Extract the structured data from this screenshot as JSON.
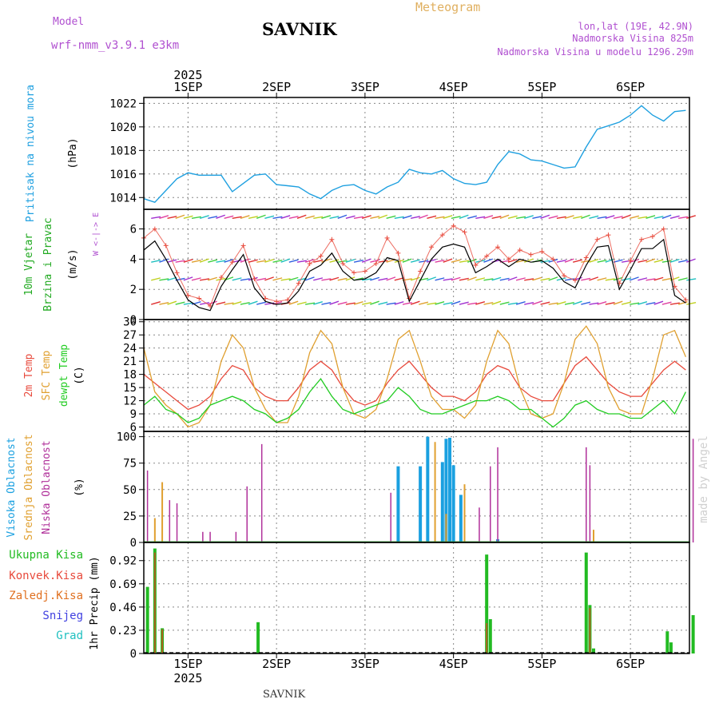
{
  "header": {
    "model_label": "Model",
    "model_name": "wrf-nmm_v3.9.1 e3km",
    "station": "SAVNIK",
    "product": "Meteogram",
    "lonlat": "lon,lat (19E, 42.9N)",
    "elevation": "Nadmorska Visina 825m",
    "model_elevation": "Nadmorska Visina u modelu 1296.29m"
  },
  "footer": {
    "station": "SAVNIK",
    "watermark": "made by Angel"
  },
  "colors": {
    "pressure": "#1fa0e0",
    "wind_label": "#22aa22",
    "t2m": "#e84a3c",
    "tsfc": "#e0a030",
    "dewpt": "#22cc22",
    "cloud_high": "#1aa0e0",
    "cloud_mid": "#e0a030",
    "cloud_low": "#b0309a",
    "precip_total": "#22bb22",
    "precip_conv": "#e84a3c",
    "precip_strat": "#e07020",
    "snow": "#4040e0",
    "hail": "#20c0c0",
    "violet": "#b050d0",
    "grid": "#888888"
  },
  "chart_data": [
    {
      "id": "pressure",
      "type": "line",
      "ylabel": [
        "Pritisak na nivou mora",
        "(hPa)"
      ],
      "ylim": [
        1013,
        1022.5
      ],
      "yticks": [
        1014,
        1016,
        1018,
        1020,
        1022
      ],
      "x_hours": [
        0,
        3,
        6,
        9,
        12,
        15,
        18,
        21,
        24,
        27,
        30,
        33,
        36,
        39,
        42,
        45,
        48,
        51,
        54,
        57,
        60,
        63,
        66,
        69,
        72,
        75,
        78,
        81,
        84,
        87,
        90,
        93,
        96,
        99,
        102,
        105,
        108,
        111,
        114,
        117,
        120,
        123,
        126,
        129,
        132,
        135,
        138,
        141,
        144,
        147
      ],
      "values": [
        1013.9,
        1013.6,
        1014.6,
        1015.6,
        1016.1,
        1015.9,
        1015.9,
        1015.9,
        1014.5,
        1015.2,
        1015.9,
        1016.0,
        1015.1,
        1015.0,
        1014.9,
        1014.3,
        1013.9,
        1014.6,
        1015.0,
        1015.1,
        1014.6,
        1014.3,
        1014.9,
        1015.3,
        1016.4,
        1016.1,
        1016.0,
        1016.3,
        1015.6,
        1015.2,
        1015.1,
        1015.3,
        1016.8,
        1017.9,
        1017.7,
        1017.2,
        1017.1,
        1016.8,
        1016.5,
        1016.6,
        1018.3,
        1019.8,
        1020.1,
        1020.4,
        1021.0,
        1021.8,
        1021.0,
        1020.5,
        1021.3,
        1021.4
      ]
    },
    {
      "id": "wind",
      "type": "line",
      "ylabel": [
        "10m Vjetar",
        "Brzina i Pravac",
        "(m/s)"
      ],
      "compass": "W <-|-> E",
      "ylim": [
        0,
        7.3
      ],
      "yticks": [
        0,
        2,
        4,
        6
      ],
      "x_hours": [
        0,
        3,
        6,
        9,
        12,
        15,
        18,
        21,
        24,
        27,
        30,
        33,
        36,
        39,
        42,
        45,
        48,
        51,
        54,
        57,
        60,
        63,
        66,
        69,
        72,
        75,
        78,
        81,
        84,
        87,
        90,
        93,
        96,
        99,
        102,
        105,
        108,
        111,
        114,
        117,
        120,
        123,
        126,
        129,
        132,
        135,
        138,
        141,
        144,
        147
      ],
      "speed_mean": [
        4.6,
        5.2,
        4.0,
        2.6,
        1.3,
        0.8,
        0.6,
        2.2,
        3.3,
        4.3,
        2.1,
        1.2,
        1.0,
        1.1,
        1.9,
        3.2,
        3.6,
        4.4,
        3.2,
        2.6,
        2.7,
        3.1,
        4.1,
        3.9,
        1.2,
        2.6,
        4.0,
        4.8,
        5.0,
        4.8,
        3.1,
        3.5,
        4.0,
        3.5,
        4.0,
        3.8,
        3.9,
        3.4,
        2.5,
        2.1,
        3.6,
        4.8,
        4.9,
        2.0,
        3.3,
        4.7,
        4.7,
        5.3,
        1.6,
        1.1
      ],
      "speed_gust": [
        5.4,
        6.0,
        4.9,
        3.1,
        1.6,
        1.4,
        0.9,
        2.8,
        3.8,
        4.9,
        2.7,
        1.4,
        1.2,
        1.3,
        2.4,
        3.7,
        4.2,
        5.3,
        3.7,
        3.1,
        3.2,
        3.7,
        5.4,
        4.4,
        1.4,
        3.2,
        4.8,
        5.6,
        6.2,
        5.8,
        3.6,
        4.2,
        4.8,
        4.0,
        4.6,
        4.3,
        4.5,
        4.0,
        2.9,
        2.6,
        4.1,
        5.3,
        5.6,
        2.4,
        3.9,
        5.3,
        5.5,
        6.0,
        2.2,
        1.3
      ]
    },
    {
      "id": "temperature",
      "type": "line",
      "ylabel": [
        "2m Temp",
        "SFC Temp",
        "dewpt Temp",
        "(C)"
      ],
      "ylim": [
        5,
        30.5
      ],
      "yticks": [
        6,
        9,
        12,
        15,
        18,
        21,
        24,
        27,
        30
      ],
      "x_hours": [
        0,
        3,
        6,
        9,
        12,
        15,
        18,
        21,
        24,
        27,
        30,
        33,
        36,
        39,
        42,
        45,
        48,
        51,
        54,
        57,
        60,
        63,
        66,
        69,
        72,
        75,
        78,
        81,
        84,
        87,
        90,
        93,
        96,
        99,
        102,
        105,
        108,
        111,
        114,
        117,
        120,
        123,
        126,
        129,
        132,
        135,
        138,
        141,
        144,
        147
      ],
      "series": [
        {
          "name": "2m Temp",
          "color": "#e84a3c",
          "values": [
            18,
            16,
            14,
            12,
            10,
            11,
            13,
            17,
            20,
            19,
            15,
            13,
            12,
            12,
            15,
            19,
            21,
            19,
            15,
            12,
            11,
            12,
            16,
            19,
            21,
            18,
            15,
            13,
            13,
            12,
            14,
            18,
            20,
            19,
            15,
            13,
            12,
            12,
            16,
            20,
            22,
            19,
            16,
            14,
            13,
            13,
            16,
            19,
            21,
            19
          ]
        },
        {
          "name": "SFC Temp",
          "color": "#e0a030",
          "values": [
            24,
            14,
            11,
            9,
            6,
            7,
            11,
            21,
            27,
            24,
            15,
            10,
            7,
            7,
            13,
            23,
            28,
            25,
            15,
            9,
            8,
            10,
            17,
            26,
            28,
            21,
            13,
            10,
            10,
            8,
            11,
            21,
            28,
            25,
            15,
            9,
            8,
            9,
            16,
            26,
            29,
            25,
            15,
            10,
            9,
            9,
            17,
            27,
            28,
            22
          ]
        },
        {
          "name": "dewpt Temp",
          "color": "#22cc22",
          "values": [
            11,
            13,
            10,
            9,
            7,
            8,
            11,
            12,
            13,
            12,
            10,
            9,
            7,
            8,
            10,
            14,
            17,
            13,
            10,
            9,
            10,
            11,
            12,
            15,
            13,
            10,
            9,
            9,
            10,
            11,
            12,
            12,
            13,
            12,
            10,
            10,
            8,
            6,
            8,
            11,
            12,
            10,
            9,
            9,
            8,
            8,
            10,
            12,
            9,
            14
          ]
        }
      ]
    },
    {
      "id": "cloud",
      "type": "bar",
      "ylabel": [
        "Visoka Oblacnost",
        "Srednja Oblacnost",
        "Niska Oblacnost",
        "(%)"
      ],
      "ylim": [
        0,
        105
      ],
      "yticks": [
        0,
        25,
        50,
        75,
        100
      ],
      "high": {
        "name": "Visoka Oblacnost",
        "hours": [
          69,
          75,
          77,
          81,
          82,
          83,
          84,
          86,
          96
        ],
        "values": [
          72,
          72,
          100,
          76,
          98,
          99,
          73,
          45,
          3
        ]
      },
      "mid": {
        "name": "Srednja Oblacnost",
        "hours": [
          3,
          5,
          79,
          82,
          87,
          122
        ],
        "values": [
          23,
          57,
          95,
          27,
          55,
          12
        ]
      },
      "low": {
        "name": "Niska Oblacnost",
        "hours": [
          1,
          7,
          9,
          16,
          18,
          25,
          28,
          32,
          67,
          91,
          94,
          96,
          120,
          121,
          149
        ],
        "values": [
          68,
          40,
          37,
          10,
          10,
          10,
          53,
          93,
          47,
          33,
          72,
          90,
          90,
          73,
          98
        ]
      }
    },
    {
      "id": "precip",
      "type": "bar",
      "ylabel": [
        "1hr Precip (mm)"
      ],
      "legend": [
        "Ukupna Kisa",
        "Konvek.Kisa",
        "Zaledj.Kisa",
        "Snijeg",
        "Grad"
      ],
      "ylim": [
        0,
        1.1
      ],
      "yticks": [
        0,
        0.23,
        0.46,
        0.69,
        0.92
      ],
      "total": {
        "hours": [
          1,
          3,
          5,
          31,
          93,
          94,
          120,
          121,
          122,
          142,
          143,
          149
        ],
        "values": [
          0.66,
          1.04,
          0.25,
          0.31,
          0.98,
          0.34,
          1.0,
          0.48,
          0.05,
          0.22,
          0.11,
          0.38
        ]
      },
      "convective": {
        "hours": [
          3,
          5,
          93,
          121
        ],
        "values": [
          1.0,
          0.24,
          0.3,
          0.45
        ]
      }
    }
  ],
  "x_axis": {
    "year": "2025",
    "day_labels": [
      "1SEP",
      "2SEP",
      "3SEP",
      "4SEP",
      "5SEP",
      "6SEP"
    ],
    "day_hours": [
      12,
      36,
      60,
      84,
      108,
      132
    ],
    "total_hours": 148
  }
}
